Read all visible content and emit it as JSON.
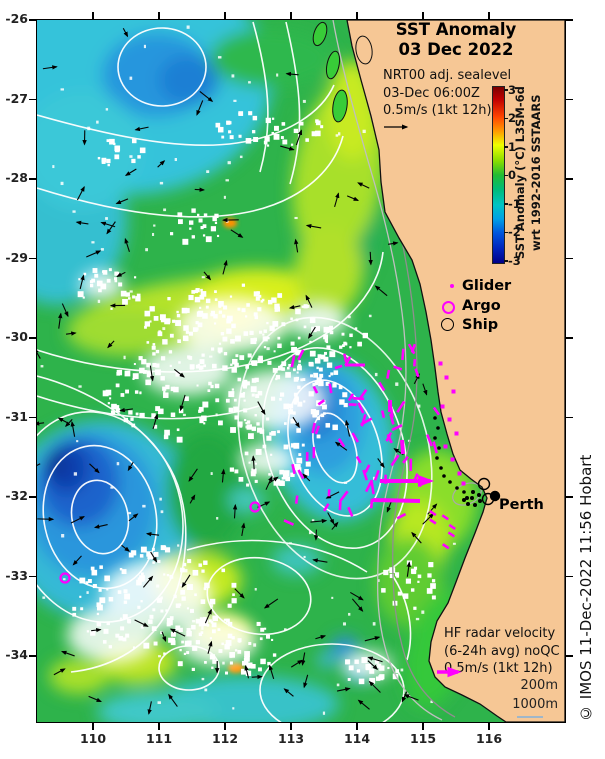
{
  "title": {
    "line1": "SST Anomaly",
    "line2": "03 Dec 2022"
  },
  "forecast_note": {
    "line1": "NRT00 adj. sealevel",
    "line2": "03-Dec 06:00Z",
    "line3": "0.5m/s (1kt 12h)"
  },
  "colorbar": {
    "tick_labels": [
      "3",
      "2",
      "1",
      "0",
      "-1",
      "-2",
      "-3"
    ],
    "label_line1": "SST Anomaly (°C) L3SM-6d",
    "label_line2": "wrt 1992-2016 SSTAARS"
  },
  "legend": {
    "glider": "Glider",
    "argo": "Argo",
    "ship": "Ship"
  },
  "map_labels": {
    "city": "Perth"
  },
  "hf_note": {
    "line1": "HF radar velocity",
    "line2": "(6-24h avg) noQC",
    "line3": "0.5m/s (1kt 12h)",
    "depth_200": "200m",
    "depth_1000": "1000m"
  },
  "credit": "© IMOS 11-Dec-2022 11:56 Hobart",
  "axes": {
    "lat": [
      "-26",
      "-27",
      "-28",
      "-29",
      "-30",
      "-31",
      "-32",
      "-33",
      "-34"
    ],
    "lon": [
      "110",
      "111",
      "112",
      "113",
      "114",
      "115",
      "116"
    ]
  },
  "colors": {
    "land": "#f6c795",
    "ocean": "#2eb34b",
    "glider_track": "#ff00ff",
    "contour": "#ffffff",
    "anomaly_warm": "#ffee00",
    "anomaly_cold": "#1a64cc"
  }
}
